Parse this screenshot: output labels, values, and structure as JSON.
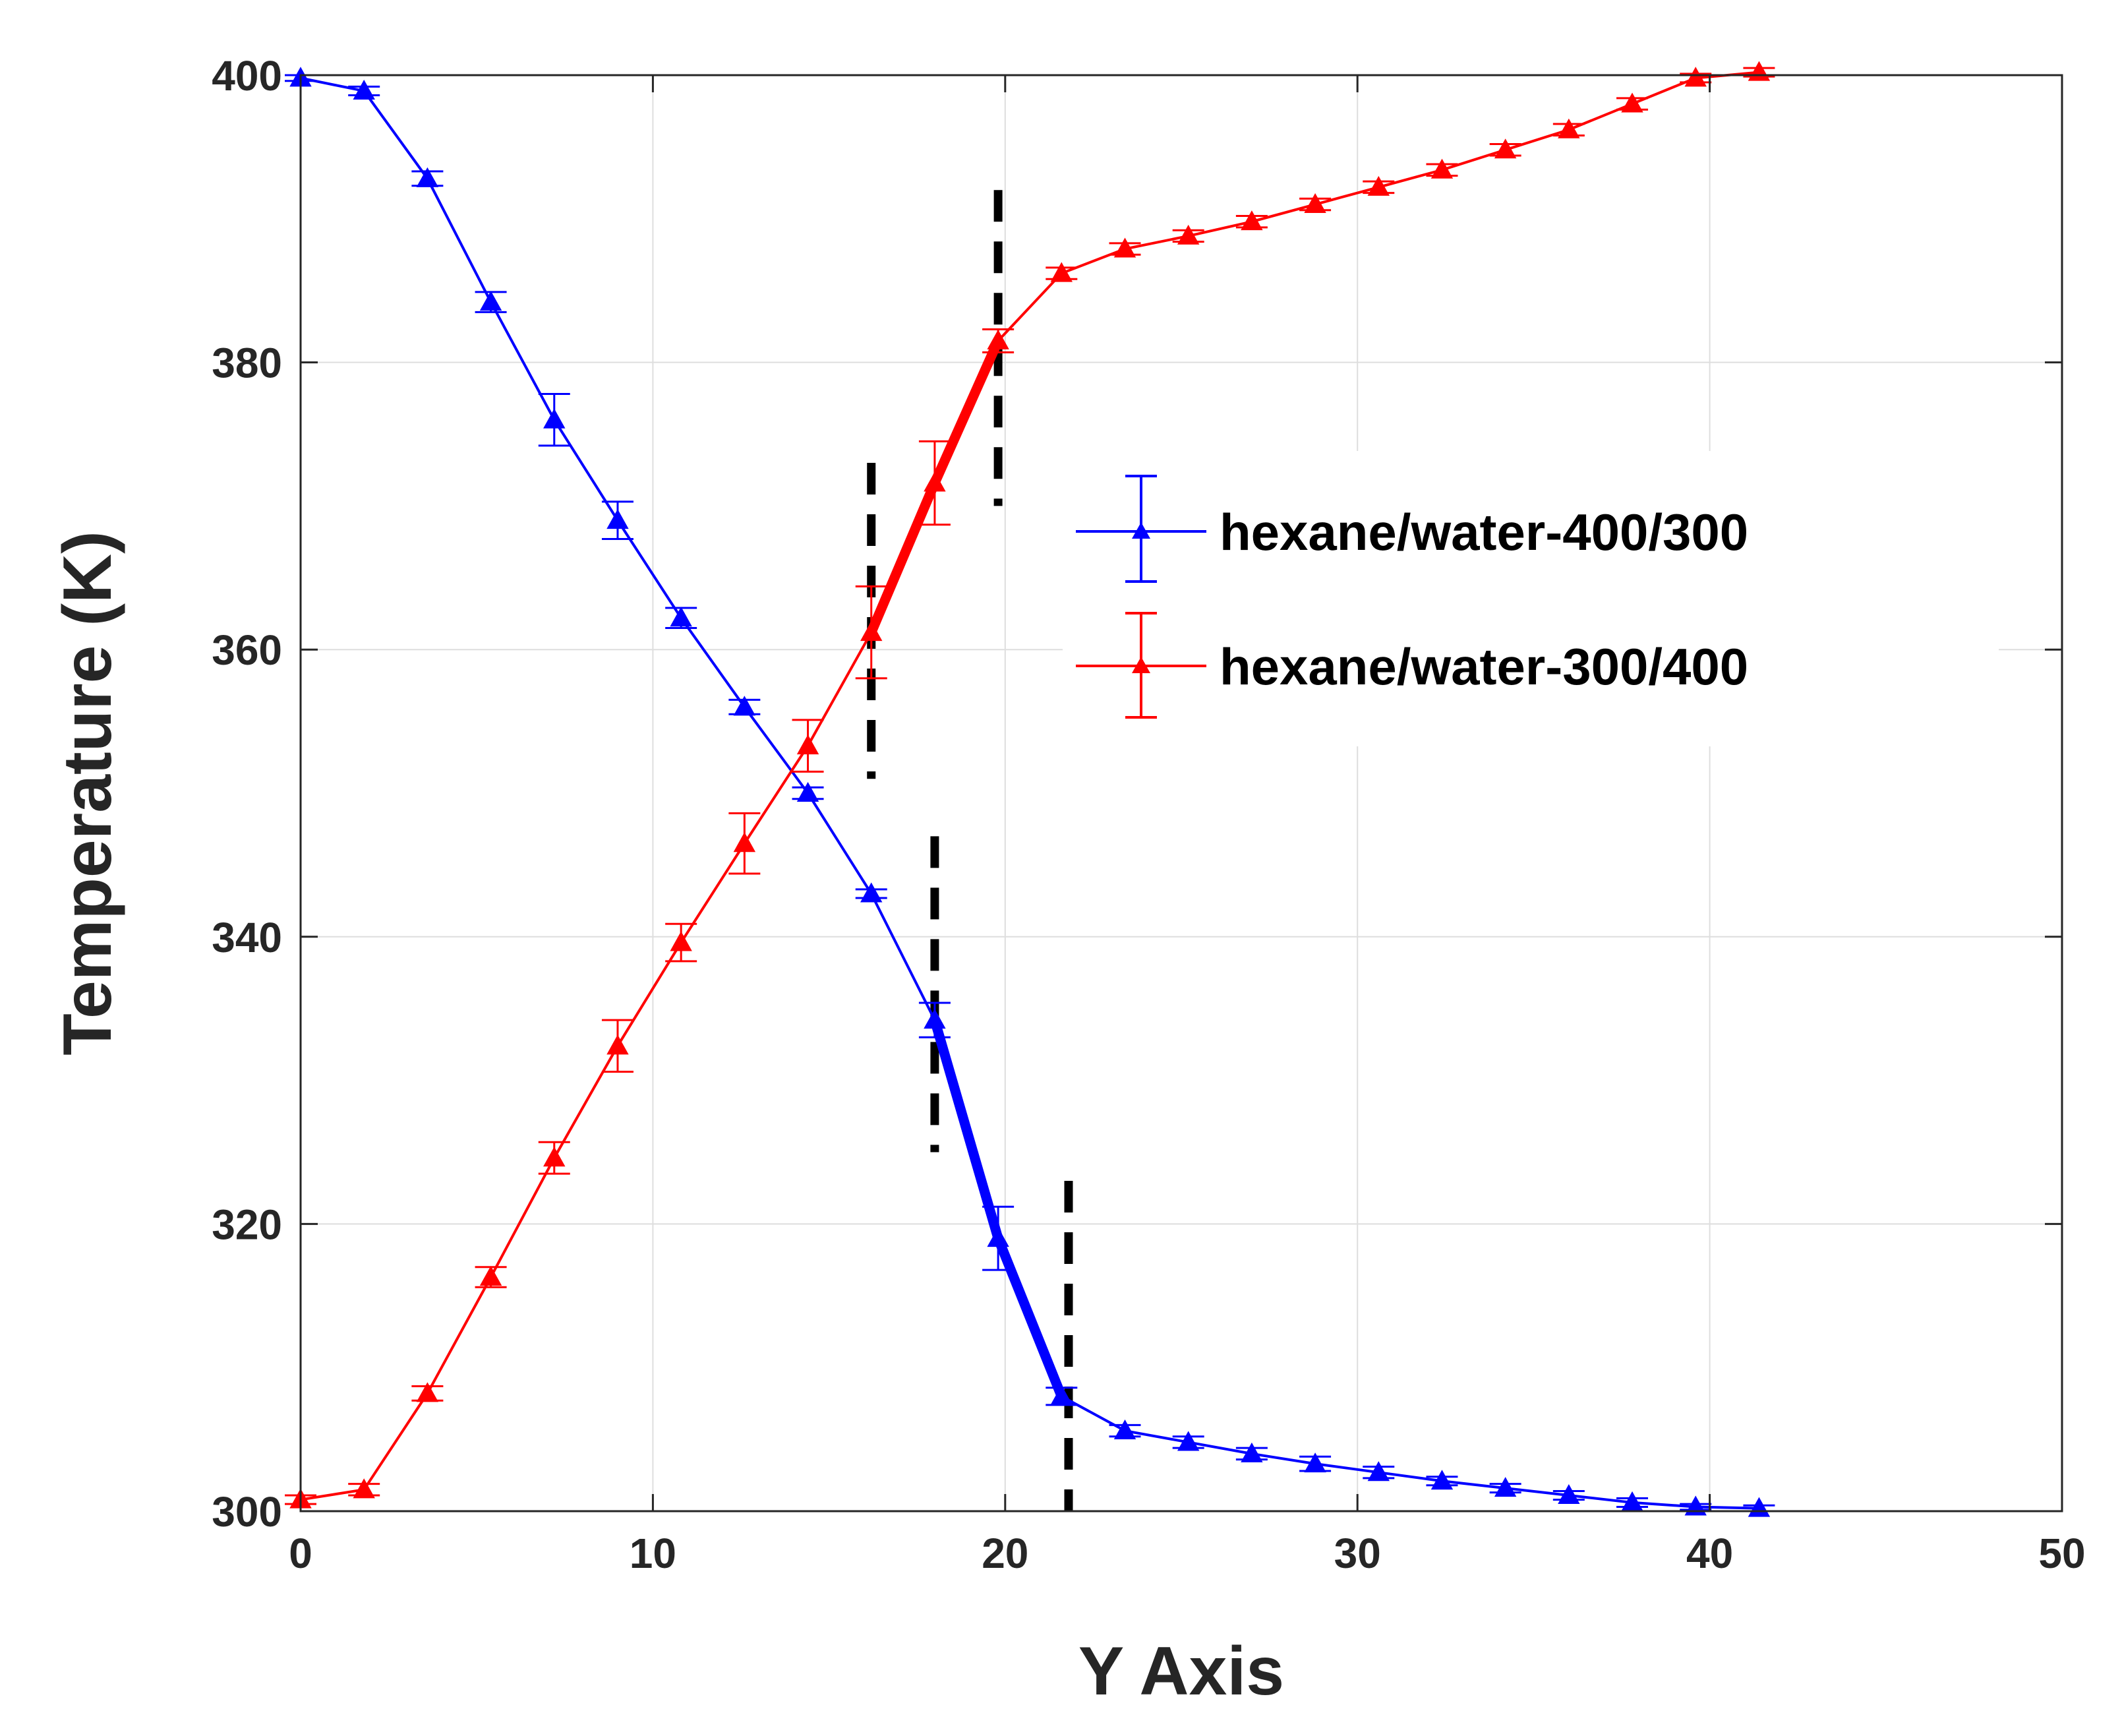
{
  "chart_data": {
    "type": "line",
    "title": "",
    "xlabel": "Y Axis",
    "ylabel": "Temperature (K)",
    "xlim": [
      0,
      50
    ],
    "ylim": [
      300,
      400
    ],
    "xticks": [
      0,
      10,
      20,
      30,
      40,
      50
    ],
    "yticks": [
      300,
      320,
      340,
      360,
      380,
      400
    ],
    "x_tick_labels": [
      "0",
      "10",
      "20",
      "30",
      "40",
      "50"
    ],
    "y_tick_labels": [
      "300",
      "320",
      "340",
      "360",
      "380",
      "400"
    ],
    "grid": true,
    "legend_position": "right-center",
    "series": [
      {
        "name": "hexane/water-400/300",
        "color": "#0000ff",
        "marker": "triangle",
        "x": [
          0,
          1.8,
          3.6,
          5.4,
          7.2,
          9.0,
          10.8,
          12.6,
          14.4,
          16.2,
          18.0,
          19.8,
          21.6,
          23.4,
          25.2,
          27.0,
          28.8,
          30.6,
          32.4,
          34.2,
          36.0,
          37.8,
          39.6,
          41.4
        ],
        "y": [
          399.8,
          398.9,
          392.8,
          384.2,
          376.0,
          369.0,
          362.2,
          356.0,
          350.0,
          343.0,
          334.2,
          319.0,
          308.0,
          305.6,
          304.8,
          304.0,
          303.3,
          302.7,
          302.1,
          301.6,
          301.1,
          300.6,
          300.3,
          300.2
        ],
        "errors": [
          0.2,
          0.3,
          0.5,
          0.7,
          1.8,
          1.3,
          0.7,
          0.5,
          0.4,
          0.3,
          1.2,
          2.2,
          0.6,
          0.4,
          0.4,
          0.4,
          0.5,
          0.4,
          0.3,
          0.3,
          0.3,
          0.3,
          0.2,
          0.2
        ],
        "highlight_x_range": [
          18.0,
          21.6
        ]
      },
      {
        "name": "hexane/water-300/400",
        "color": "#ff0000",
        "marker": "triangle",
        "x": [
          0,
          1.8,
          3.6,
          5.4,
          7.2,
          9.0,
          10.8,
          12.6,
          14.4,
          16.2,
          18.0,
          19.8,
          21.6,
          23.4,
          25.2,
          27.0,
          28.8,
          30.6,
          32.4,
          34.2,
          36.0,
          37.8,
          39.6,
          41.4
        ],
        "y": [
          300.8,
          301.5,
          308.2,
          316.3,
          324.6,
          332.4,
          339.6,
          346.5,
          353.3,
          361.2,
          371.6,
          381.5,
          386.2,
          387.9,
          388.8,
          389.8,
          391.0,
          392.2,
          393.4,
          394.8,
          396.2,
          398.0,
          399.8,
          400.2
        ],
        "errors": [
          0.3,
          0.4,
          0.5,
          0.7,
          1.1,
          1.8,
          1.3,
          2.1,
          1.8,
          3.2,
          2.9,
          0.8,
          0.4,
          0.4,
          0.4,
          0.4,
          0.4,
          0.4,
          0.4,
          0.4,
          0.4,
          0.4,
          0.3,
          0.3
        ],
        "highlight_x_range": [
          16.2,
          19.8
        ]
      }
    ],
    "annotations": [
      {
        "type": "vline",
        "style": "dashed",
        "color": "#000000",
        "x": 16.2,
        "y_range": [
          351,
          373
        ]
      },
      {
        "type": "vline",
        "style": "dashed",
        "color": "#000000",
        "x": 19.8,
        "y_range": [
          370,
          392
        ]
      },
      {
        "type": "vline",
        "style": "dashed",
        "color": "#000000",
        "x": 18.0,
        "y_range": [
          325,
          347
        ]
      },
      {
        "type": "vline",
        "style": "dashed",
        "color": "#000000",
        "x": 21.8,
        "y_range": [
          300,
          323
        ]
      }
    ]
  }
}
